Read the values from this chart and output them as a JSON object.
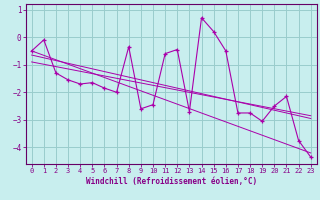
{
  "xlabel": "Windchill (Refroidissement éolien,°C)",
  "bg_color": "#c8eeee",
  "line_color": "#aa00aa",
  "grid_color": "#99cccc",
  "axis_color": "#880088",
  "spine_color": "#660066",
  "xlim": [
    -0.5,
    23.5
  ],
  "ylim": [
    -4.6,
    1.2
  ],
  "xticks": [
    0,
    1,
    2,
    3,
    4,
    5,
    6,
    7,
    8,
    9,
    10,
    11,
    12,
    13,
    14,
    15,
    16,
    17,
    18,
    19,
    20,
    21,
    22,
    23
  ],
  "yticks": [
    -4,
    -3,
    -2,
    -1,
    0,
    1
  ],
  "main_data_x": [
    0,
    1,
    2,
    3,
    4,
    5,
    6,
    7,
    8,
    9,
    10,
    11,
    12,
    13,
    14,
    15,
    16,
    17,
    18,
    19,
    20,
    21,
    22,
    23
  ],
  "main_data_y": [
    -0.5,
    -0.1,
    -1.3,
    -1.55,
    -1.7,
    -1.65,
    -1.85,
    -2.0,
    -0.35,
    -2.6,
    -2.45,
    -0.6,
    -0.45,
    -2.7,
    0.7,
    0.2,
    -0.5,
    -2.75,
    -2.75,
    -3.05,
    -2.5,
    -2.15,
    -3.75,
    -4.35
  ],
  "regression_lines": [
    {
      "x": [
        0,
        23
      ],
      "y": [
        -0.5,
        -4.2
      ]
    },
    {
      "x": [
        0,
        23
      ],
      "y": [
        -0.65,
        -2.95
      ]
    },
    {
      "x": [
        0,
        23
      ],
      "y": [
        -0.9,
        -2.85
      ]
    }
  ],
  "tick_fontsize": 5.0,
  "xlabel_fontsize": 5.5
}
